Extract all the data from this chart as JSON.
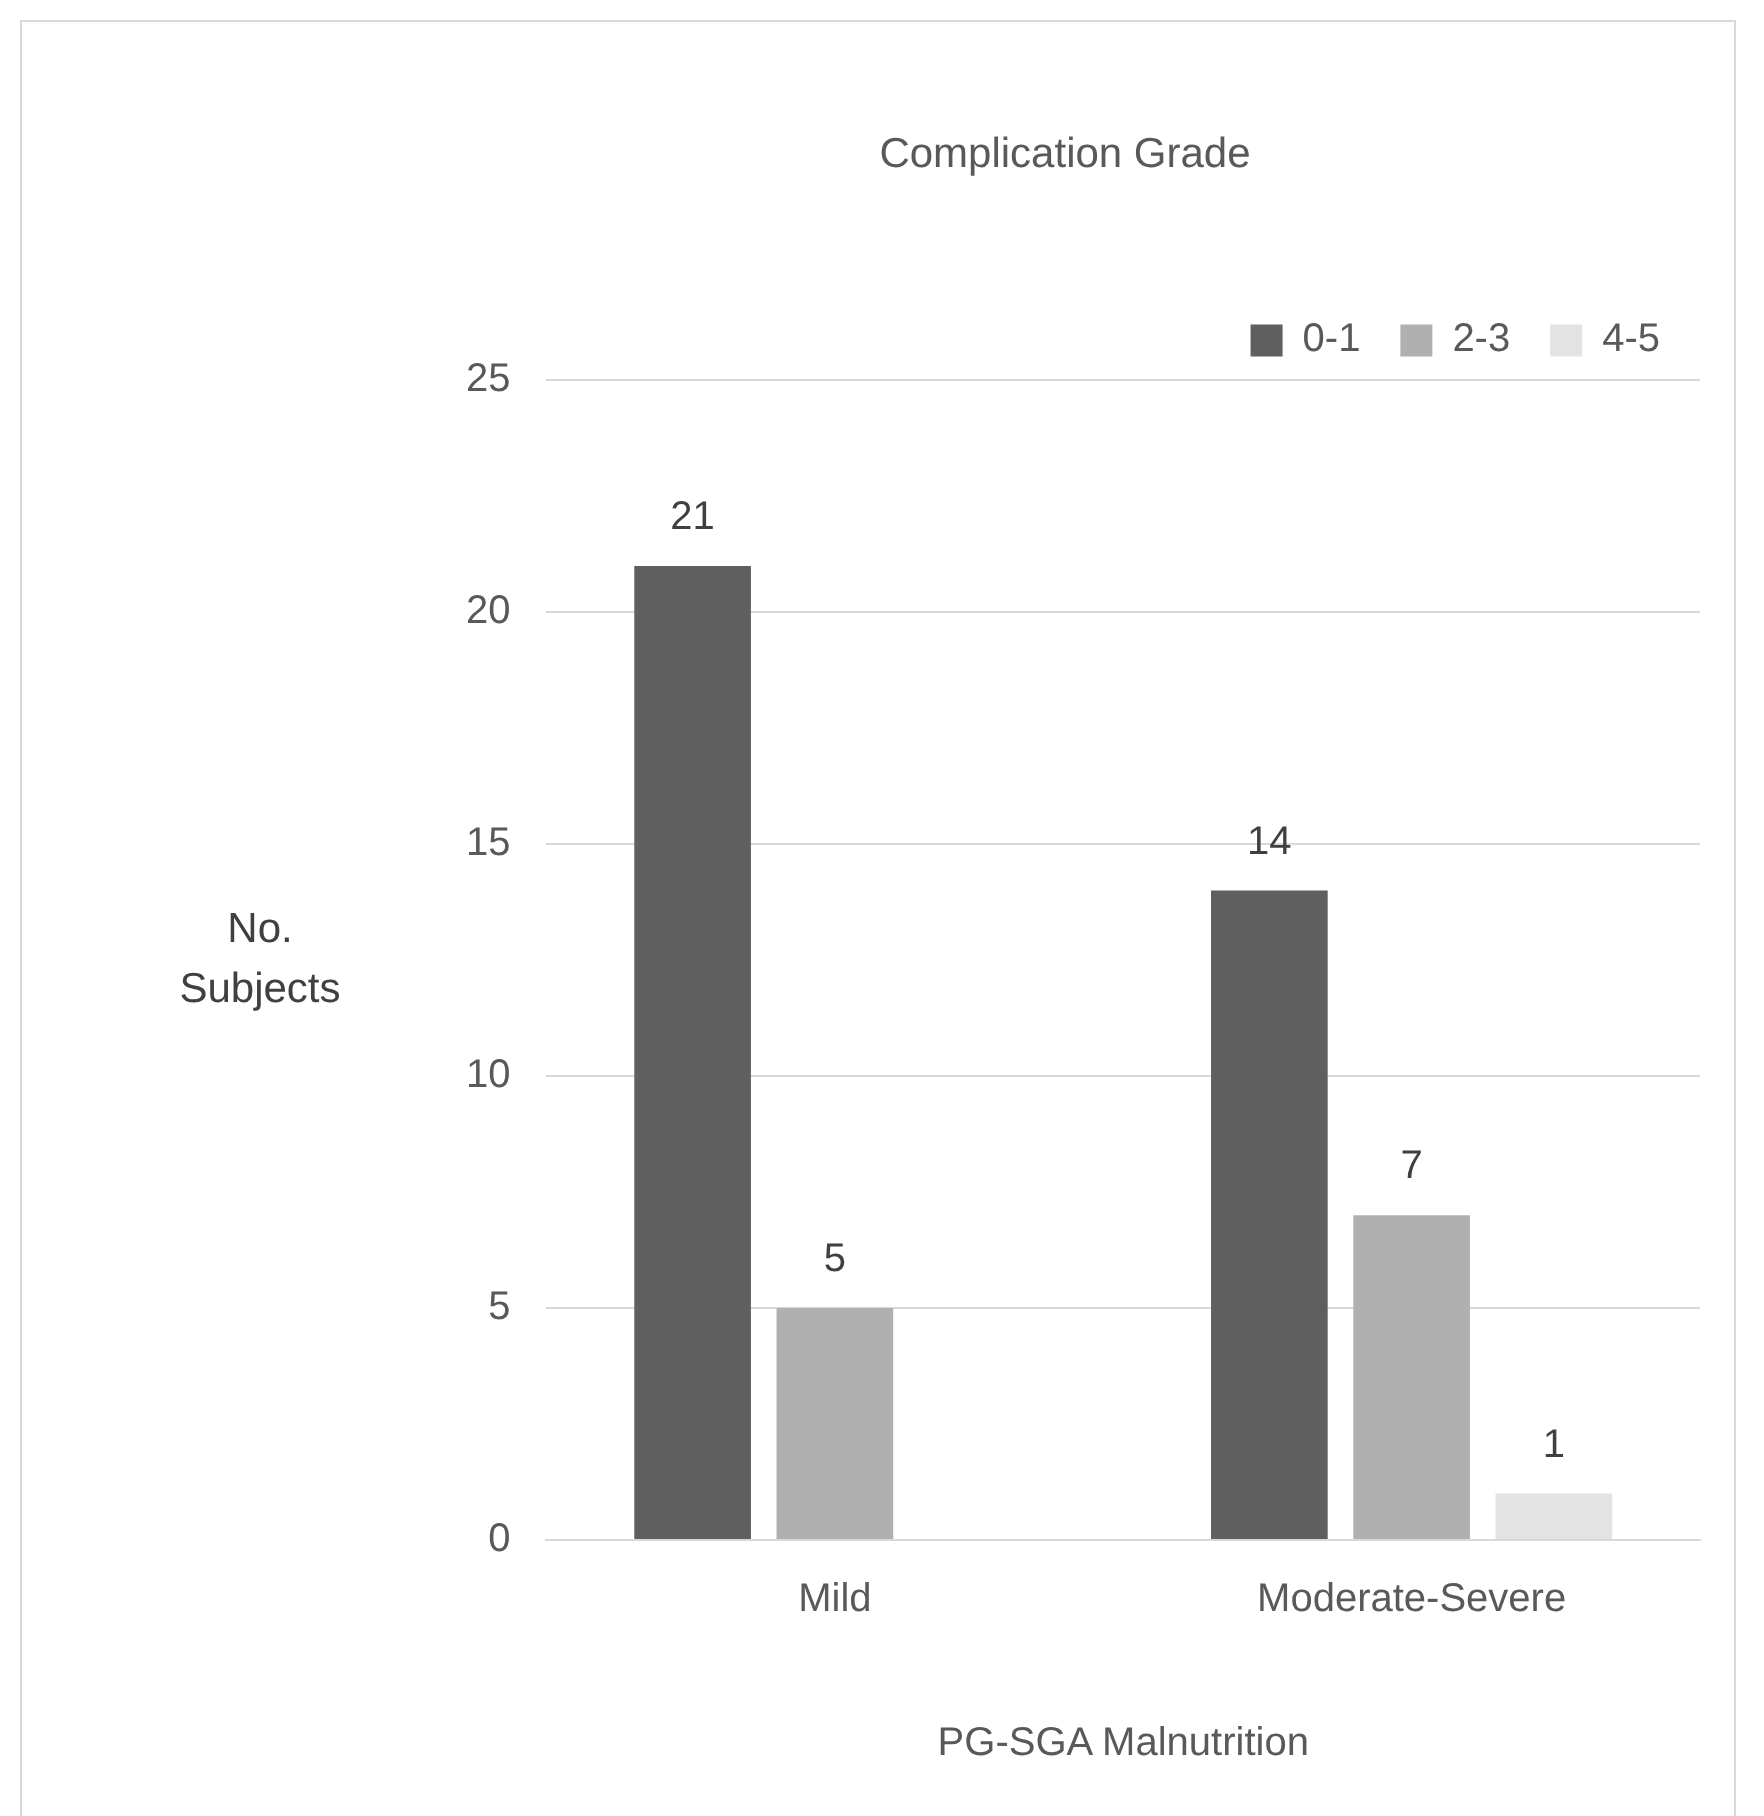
{
  "chart_data": {
    "type": "bar",
    "title": "Complication Grade",
    "xlabel": "PG-SGA Malnutrition",
    "ylabel": "No. Subjects",
    "categories": [
      "Mild",
      "Moderate-Severe"
    ],
    "series": [
      {
        "name": "0-1",
        "color": "#5f5f5f",
        "values": [
          21,
          14
        ],
        "value_labels": [
          "21",
          "14"
        ]
      },
      {
        "name": "2-3",
        "color": "#b0b0b0",
        "values": [
          5,
          7
        ],
        "value_labels": [
          "5",
          "7"
        ]
      },
      {
        "name": "4-5",
        "color": "#e3e3e3",
        "values": [
          0,
          1
        ],
        "value_labels": [
          null,
          "1"
        ]
      }
    ],
    "ylim": [
      0,
      25
    ],
    "yticks": [
      0,
      5,
      10,
      15,
      20,
      25
    ],
    "grid": "y",
    "legend": "top right"
  }
}
